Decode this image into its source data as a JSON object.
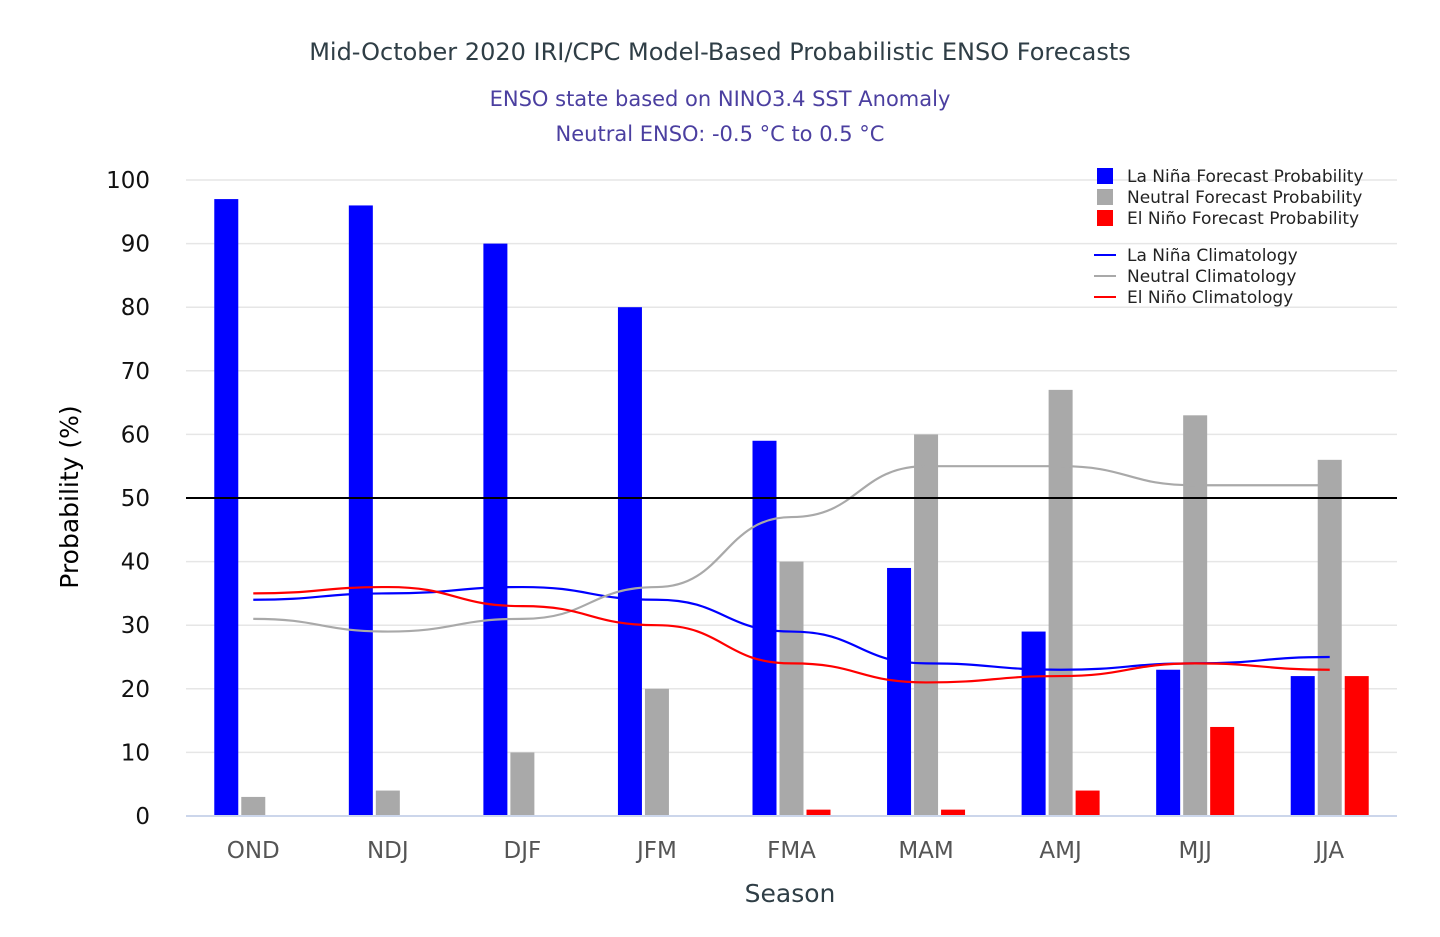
{
  "chart_data": {
    "type": "bar",
    "title": "Mid-October 2020 IRI/CPC Model-Based Probabilistic ENSO Forecasts",
    "subtitle_lines": [
      "ENSO state based on NINO3.4 SST Anomaly",
      "Neutral ENSO: -0.5 °C to 0.5 °C"
    ],
    "xlabel": "Season",
    "ylabel": "Probability (%)",
    "ylim": [
      0,
      100
    ],
    "yticks": [
      0,
      10,
      20,
      30,
      40,
      50,
      60,
      70,
      80,
      90,
      100
    ],
    "grid": true,
    "reference_line": 50,
    "legend_position": "top-right",
    "categories": [
      "OND",
      "NDJ",
      "DJF",
      "JFM",
      "FMA",
      "MAM",
      "AMJ",
      "MJJ",
      "JJA"
    ],
    "series": [
      {
        "name": "La Niña Forecast Probability",
        "kind": "bar",
        "color": "#0000ff",
        "values": [
          97,
          96,
          90,
          80,
          59,
          39,
          29,
          23,
          22
        ]
      },
      {
        "name": "Neutral Forecast Probability",
        "kind": "bar",
        "color": "#a9a9a9",
        "values": [
          3,
          4,
          10,
          20,
          40,
          60,
          67,
          63,
          56
        ]
      },
      {
        "name": "El Niño Forecast Probability",
        "kind": "bar",
        "color": "#ff0000",
        "values": [
          0,
          0,
          0,
          0,
          1,
          1,
          4,
          14,
          22
        ]
      },
      {
        "name": "La Niña Climatology",
        "kind": "line",
        "color": "#0000ff",
        "values": [
          34,
          35,
          36,
          34,
          29,
          24,
          23,
          24,
          25
        ]
      },
      {
        "name": "Neutral Climatology",
        "kind": "line",
        "color": "#a9a9a9",
        "values": [
          31,
          29,
          31,
          36,
          47,
          55,
          55,
          52,
          52
        ]
      },
      {
        "name": "El Niño Climatology",
        "kind": "line",
        "color": "#ff0000",
        "values": [
          35,
          36,
          33,
          30,
          24,
          21,
          22,
          24,
          23
        ]
      }
    ],
    "colors": {
      "title": "#2f3e46",
      "subtitle": "#4b3fa0",
      "axis_text": "#555555",
      "grid": "#e6e6e6",
      "baseline": "#ccd6eb",
      "reference": "#000000"
    }
  }
}
